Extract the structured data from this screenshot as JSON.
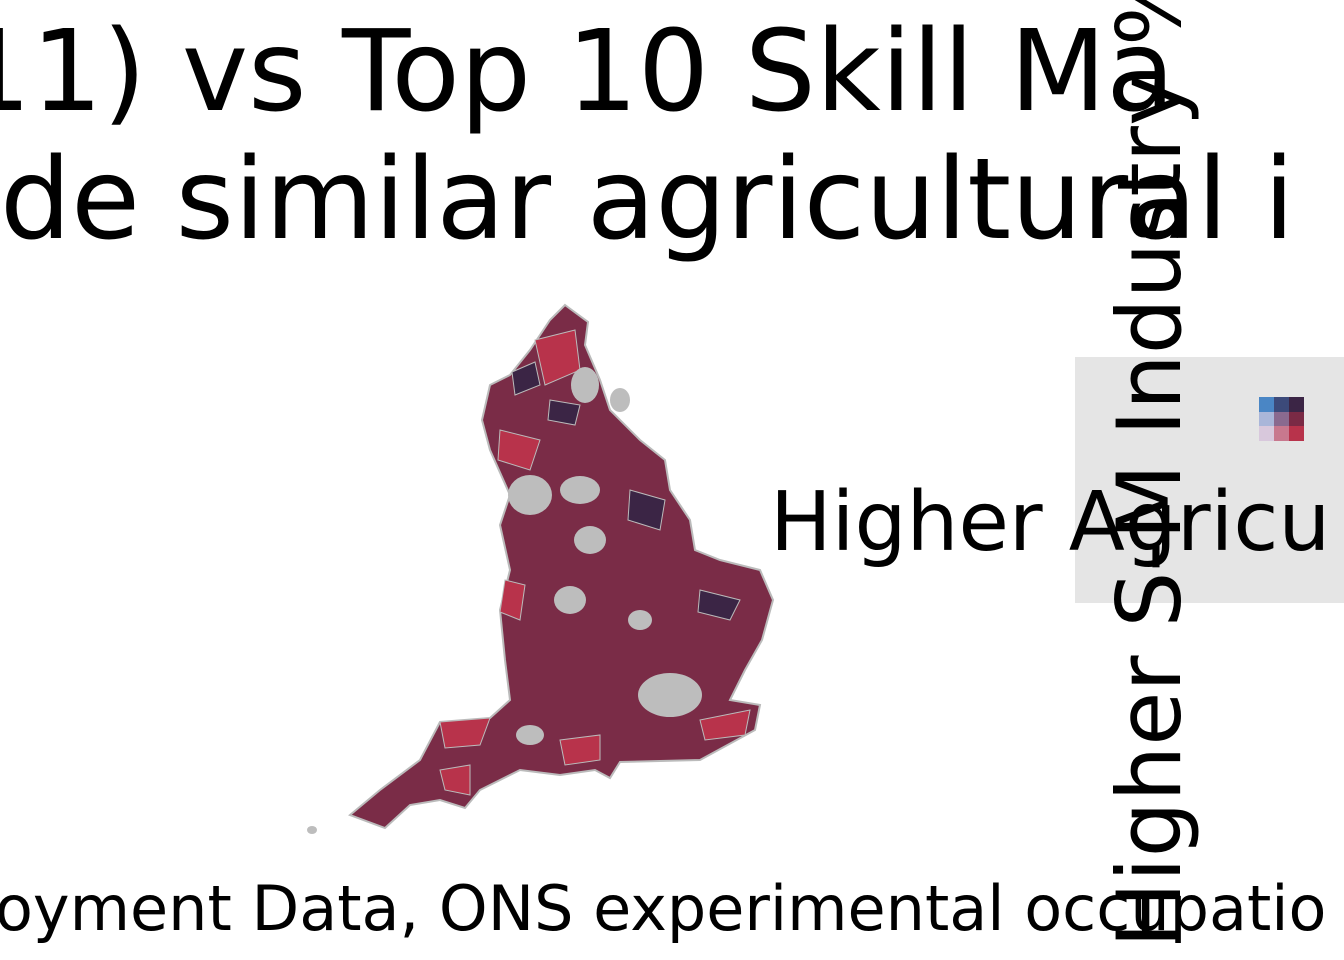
{
  "title": "11) vs Top 10 Skill Ma",
  "subtitle": "de similar agricultural i",
  "caption": "oyment Data, ONS experimental occupatio",
  "legend": {
    "x_label": "Higher Agricu",
    "y_label": "Higher S-M Industry %"
  }
}
